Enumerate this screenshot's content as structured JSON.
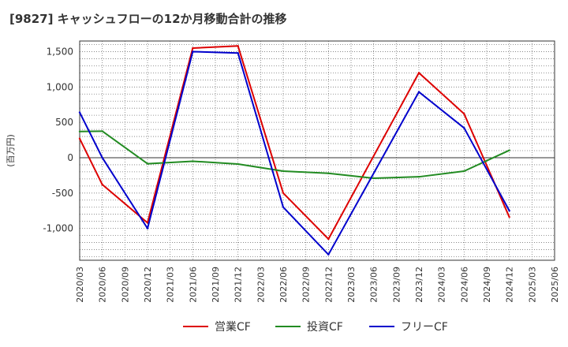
{
  "title": "[9827]  キャッシュフローの12か月移動合計の推移",
  "chart_data": {
    "type": "line",
    "title": "[9827]  キャッシュフローの12か月移動合計の推移",
    "xlabel": "",
    "ylabel": "(百万円)",
    "ylim": [
      -1450,
      1650
    ],
    "yticks": [
      1500,
      1000,
      500,
      0,
      -500,
      -1000
    ],
    "ytick_labels": [
      "1,500",
      "1,000",
      "500",
      "0",
      "-500",
      "-1,000"
    ],
    "grid": true,
    "legend_position": "bottom",
    "x": [
      "2020/03",
      "2020/06",
      "2020/09",
      "2020/12",
      "2021/03",
      "2021/06",
      "2021/09",
      "2021/12",
      "2022/03",
      "2022/06",
      "2022/09",
      "2022/12",
      "2023/03",
      "2023/06",
      "2023/09",
      "2023/12",
      "2024/03",
      "2024/06",
      "2024/09",
      "2024/12",
      "2025/03",
      "2025/06"
    ],
    "series": [
      {
        "name": "営業CF",
        "color": "#dd0000",
        "values": [
          270,
          -380,
          null,
          -920,
          null,
          1550,
          null,
          1580,
          null,
          -500,
          null,
          -1150,
          null,
          null,
          null,
          1200,
          null,
          620,
          null,
          -840,
          null,
          null
        ]
      },
      {
        "name": "投資CF",
        "color": "#228b22",
        "values": [
          370,
          375,
          null,
          -85,
          null,
          -50,
          null,
          -90,
          null,
          -190,
          null,
          -220,
          null,
          -290,
          null,
          -270,
          null,
          -190,
          null,
          105,
          null,
          null
        ]
      },
      {
        "name": "フリーCF",
        "color": "#0000cc",
        "values": [
          640,
          0,
          null,
          -1000,
          null,
          1500,
          null,
          1480,
          null,
          -700,
          null,
          -1370,
          null,
          null,
          null,
          930,
          null,
          420,
          null,
          -750,
          null,
          null
        ]
      }
    ]
  }
}
